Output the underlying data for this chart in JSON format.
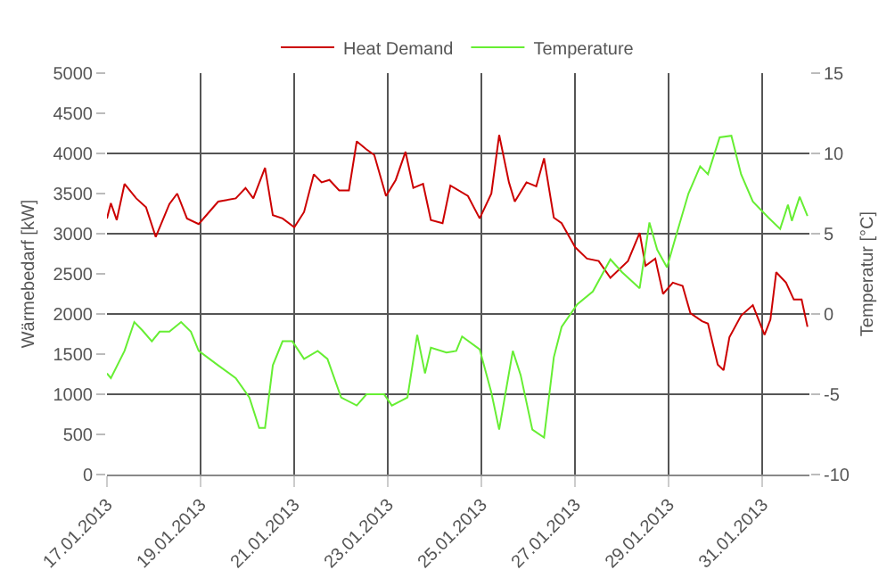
{
  "chart_data": {
    "type": "line",
    "ylabel": "Wärmebedarf [kW]",
    "y2label": "Temperatur [°C]",
    "legend": "top",
    "grid": true,
    "marker": "none",
    "line_style": "solid",
    "xlim": [
      "2013-01-17",
      "2013-02-01"
    ],
    "xticks": [
      {
        "value": "2013-01-17",
        "label": "17.01.2013"
      },
      {
        "value": "2013-01-19",
        "label": "19.01.2013"
      },
      {
        "value": "2013-01-21",
        "label": "21.01.2013"
      },
      {
        "value": "2013-01-23",
        "label": "23.01.2013"
      },
      {
        "value": "2013-01-25",
        "label": "25.01.2013"
      },
      {
        "value": "2013-01-27",
        "label": "27.01.2013"
      },
      {
        "value": "2013-01-29",
        "label": "29.01.2013"
      },
      {
        "value": "2013-01-31",
        "label": "31.01.2013"
      }
    ],
    "ylim": [
      0,
      5000
    ],
    "yticks": [
      0,
      500,
      1000,
      1500,
      2000,
      2500,
      3000,
      3500,
      4000,
      4500,
      5000
    ],
    "y2lim": [
      -10,
      15
    ],
    "y2ticks": [
      -10,
      -5,
      0,
      5,
      10,
      15
    ],
    "series": [
      {
        "name": "Heat Demand",
        "color": "#cc0000",
        "x": [
          "2013-01-17T00:00",
          "2013-01-17T02:00",
          "2013-01-17T05:00",
          "2013-01-17T09:00",
          "2013-01-17T15:00",
          "2013-01-17T20:00",
          "2013-01-18T01:00",
          "2013-01-18T08:00",
          "2013-01-18T12:00",
          "2013-01-18T17:00",
          "2013-01-18T23:00",
          "2013-01-19T09:00",
          "2013-01-19T18:00",
          "2013-01-19T23:00",
          "2013-01-20T03:00",
          "2013-01-20T09:00",
          "2013-01-20T13:00",
          "2013-01-20T18:00",
          "2013-01-21T00:00",
          "2013-01-21T05:00",
          "2013-01-21T10:00",
          "2013-01-21T14:00",
          "2013-01-21T18:00",
          "2013-01-21T23:00",
          "2013-01-22T04:00",
          "2013-01-22T08:00",
          "2013-01-22T13:00",
          "2013-01-22T17:00",
          "2013-01-22T23:00",
          "2013-01-23T04:00",
          "2013-01-23T09:00",
          "2013-01-23T13:00",
          "2013-01-23T18:00",
          "2013-01-23T22:00",
          "2013-01-24T04:00",
          "2013-01-24T08:00",
          "2013-01-24T17:00",
          "2013-01-24T23:00",
          "2013-01-25T05:00",
          "2013-01-25T09:00",
          "2013-01-25T14:00",
          "2013-01-25T17:00",
          "2013-01-25T23:00",
          "2013-01-26T04:00",
          "2013-01-26T08:00",
          "2013-01-26T13:00",
          "2013-01-26T17:00",
          "2013-01-27T00:00",
          "2013-01-27T06:00",
          "2013-01-27T12:00",
          "2013-01-27T18:00",
          "2013-01-28T03:00",
          "2013-01-28T09:00",
          "2013-01-28T12:00",
          "2013-01-28T17:00",
          "2013-01-28T21:00",
          "2013-01-29T02:00",
          "2013-01-29T07:00",
          "2013-01-29T11:00",
          "2013-01-29T17:00",
          "2013-01-29T20:00",
          "2013-01-30T01:00",
          "2013-01-30T04:00",
          "2013-01-30T07:00",
          "2013-01-30T13:00",
          "2013-01-30T19:00",
          "2013-01-31T01:00",
          "2013-01-31T04:00",
          "2013-01-31T07:00",
          "2013-01-31T12:00",
          "2013-01-31T16:00",
          "2013-01-31T20:00",
          "2013-01-31T23:00"
        ],
        "values": [
          3190,
          3380,
          3170,
          3620,
          3440,
          3330,
          2960,
          3370,
          3500,
          3190,
          3120,
          3400,
          3440,
          3570,
          3440,
          3820,
          3230,
          3190,
          3080,
          3270,
          3740,
          3640,
          3670,
          3540,
          3540,
          4150,
          4050,
          3980,
          3470,
          3670,
          4020,
          3570,
          3620,
          3170,
          3130,
          3600,
          3470,
          3190,
          3500,
          4230,
          3640,
          3400,
          3640,
          3590,
          3940,
          3200,
          3130,
          2830,
          2690,
          2660,
          2450,
          2660,
          3010,
          2600,
          2690,
          2250,
          2390,
          2350,
          2010,
          1910,
          1880,
          1370,
          1300,
          1710,
          1980,
          2110,
          1740,
          1930,
          2520,
          2390,
          2180,
          2180,
          1840
        ]
      },
      {
        "name": "Temperature",
        "color": "#66ee33",
        "axis": "y2",
        "x": [
          "2013-01-17T00:00",
          "2013-01-17T02:00",
          "2013-01-17T09:00",
          "2013-01-17T14:00",
          "2013-01-17T18:00",
          "2013-01-17T23:00",
          "2013-01-18T03:00",
          "2013-01-18T08:00",
          "2013-01-18T14:00",
          "2013-01-18T19:00",
          "2013-01-18T23:00",
          "2013-01-19T09:00",
          "2013-01-19T18:00",
          "2013-01-20T01:00",
          "2013-01-20T06:00",
          "2013-01-20T09:00",
          "2013-01-20T13:00",
          "2013-01-20T18:00",
          "2013-01-20T23:00",
          "2013-01-21T05:00",
          "2013-01-21T12:00",
          "2013-01-21T17:00",
          "2013-01-22T00:00",
          "2013-01-22T08:00",
          "2013-01-22T13:00",
          "2013-01-22T22:00",
          "2013-01-23T02:00",
          "2013-01-23T10:00",
          "2013-01-23T15:00",
          "2013-01-23T19:00",
          "2013-01-23T22:00",
          "2013-01-24T06:00",
          "2013-01-24T11:00",
          "2013-01-24T14:00",
          "2013-01-24T23:00",
          "2013-01-25T05:00",
          "2013-01-25T09:00",
          "2013-01-25T16:00",
          "2013-01-25T20:00",
          "2013-01-26T02:00",
          "2013-01-26T08:00",
          "2013-01-26T13:00",
          "2013-01-26T17:00",
          "2013-01-27T01:00",
          "2013-01-27T09:00",
          "2013-01-27T18:00",
          "2013-01-28T00:00",
          "2013-01-28T09:00",
          "2013-01-28T14:00",
          "2013-01-28T18:00",
          "2013-01-28T23:00",
          "2013-01-29T03:00",
          "2013-01-29T10:00",
          "2013-01-29T16:00",
          "2013-01-29T20:00",
          "2013-01-30T02:00",
          "2013-01-30T08:00",
          "2013-01-30T13:00",
          "2013-01-30T19:00",
          "2013-01-31T03:00",
          "2013-01-31T09:00",
          "2013-01-31T13:00",
          "2013-01-31T15:00",
          "2013-01-31T19:00",
          "2013-01-31T23:00"
        ],
        "values": [
          -3.7,
          -4.0,
          -2.3,
          -0.5,
          -1.0,
          -1.7,
          -1.1,
          -1.1,
          -0.5,
          -1.1,
          -2.3,
          -3.2,
          -4.0,
          -5.2,
          -7.1,
          -7.1,
          -3.2,
          -1.7,
          -1.7,
          -2.8,
          -2.3,
          -2.8,
          -5.2,
          -5.7,
          -5.0,
          -5.0,
          -5.7,
          -5.2,
          -1.3,
          -3.7,
          -2.1,
          -2.4,
          -2.3,
          -1.4,
          -2.2,
          -4.9,
          -7.2,
          -2.3,
          -3.8,
          -7.2,
          -7.7,
          -2.7,
          -0.8,
          0.6,
          1.4,
          3.4,
          2.6,
          1.6,
          5.7,
          4.0,
          2.9,
          4.6,
          7.5,
          9.2,
          8.7,
          11.0,
          11.1,
          8.7,
          7.0,
          6.0,
          5.3,
          6.8,
          5.8,
          7.3,
          6.1
        ]
      }
    ]
  }
}
